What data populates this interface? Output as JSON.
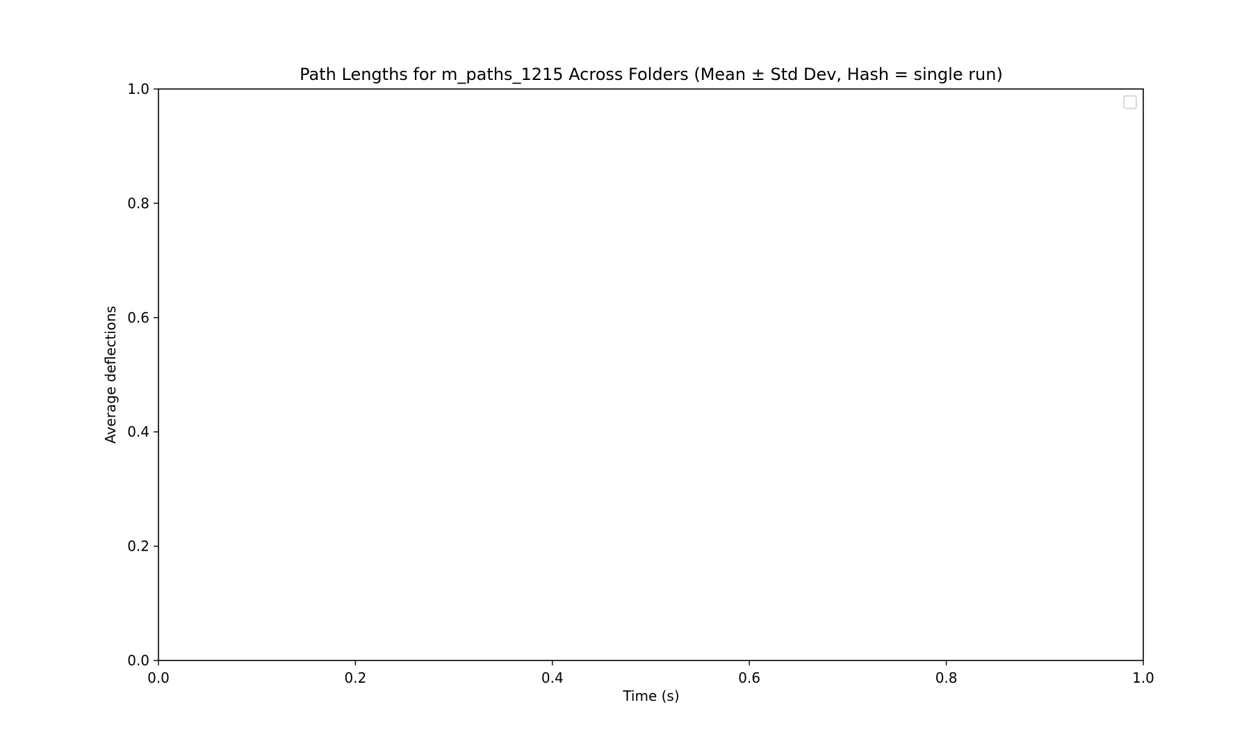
{
  "chart_data": {
    "type": "line",
    "title": "Path Lengths for m_paths_1215 Across Folders (Mean ± Std Dev, Hash = single run)",
    "xlabel": "Time (s)",
    "ylabel": "Average deflections",
    "xlim": [
      0.0,
      1.0
    ],
    "ylim": [
      0.0,
      1.0
    ],
    "x_ticks": [
      0.0,
      0.2,
      0.4,
      0.6,
      0.8,
      1.0
    ],
    "x_tick_labels": [
      "0.0",
      "0.2",
      "0.4",
      "0.6",
      "0.8",
      "1.0"
    ],
    "y_ticks": [
      0.0,
      0.2,
      0.4,
      0.6,
      0.8,
      1.0
    ],
    "y_tick_labels": [
      "0.0",
      "0.2",
      "0.4",
      "0.6",
      "0.8",
      "1.0"
    ],
    "series": [],
    "grid": false,
    "legend": {
      "placement": "top-right",
      "entries": []
    }
  }
}
